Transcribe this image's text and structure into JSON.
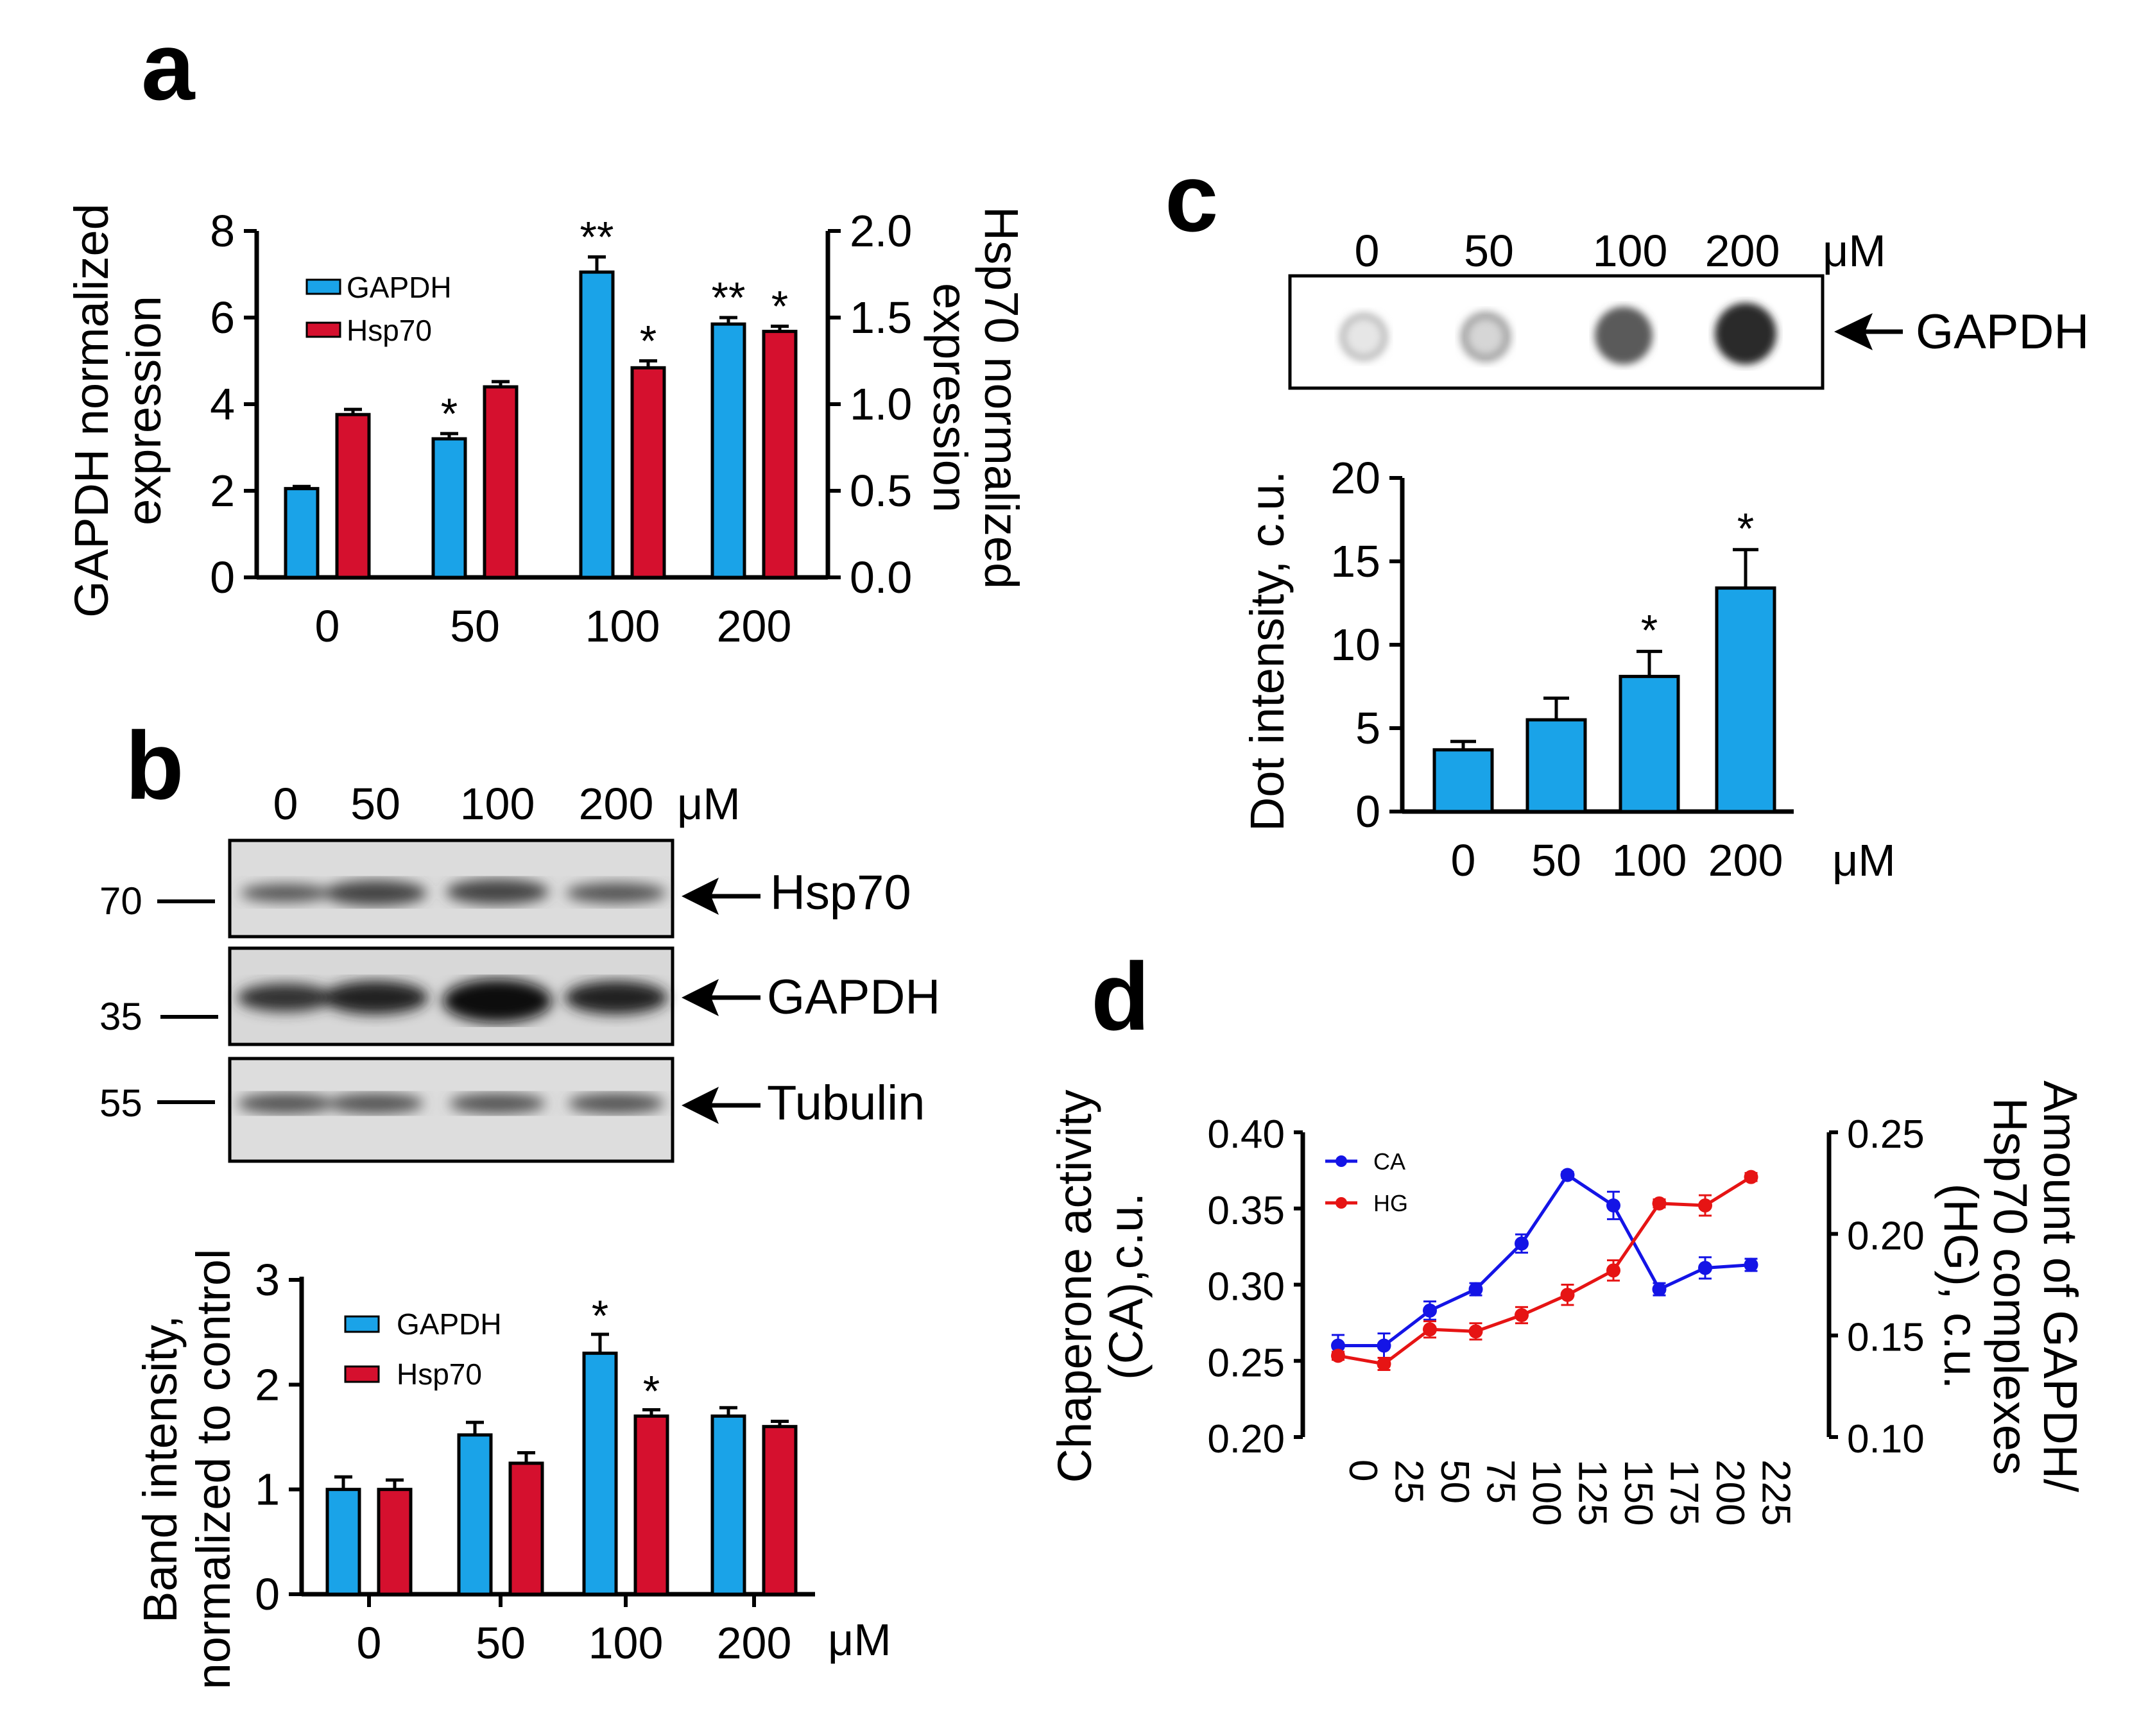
{
  "colors": {
    "gapdh": "#1aa3e8",
    "hsp70": "#d5102e",
    "ca": "#1414e6",
    "hg": "#e61414",
    "blot_bg": "#d9d9d9"
  },
  "panel_a": {
    "letter": "a",
    "ylabel_left": [
      "GAPDH normalized",
      "expression"
    ],
    "ylabel_right": [
      "Hsp70 normalized",
      "expression"
    ],
    "legend": [
      "GAPDH",
      "Hsp70"
    ],
    "chart_data": {
      "type": "bar",
      "categories": [
        "0",
        "50",
        "100",
        "200"
      ],
      "series": [
        {
          "name": "GAPDH",
          "axis": "left",
          "values": [
            2.05,
            3.2,
            7.05,
            5.85
          ],
          "errors": [
            0.05,
            0.12,
            0.35,
            0.15
          ],
          "stars": [
            "",
            "*",
            "**",
            "**"
          ]
        },
        {
          "name": "Hsp70",
          "axis": "right",
          "values": [
            0.94,
            1.1,
            1.21,
            1.42
          ],
          "errors": [
            0.03,
            0.03,
            0.04,
            0.03
          ],
          "stars": [
            "",
            "",
            "*",
            "*"
          ]
        }
      ],
      "ylim_left": [
        0,
        8
      ],
      "yticks_left": [
        "0",
        "2",
        "4",
        "6",
        "8"
      ],
      "ylim_right": [
        0,
        2
      ],
      "yticks_right": [
        "0.0",
        "0.5",
        "1.0",
        "1.5",
        "2.0"
      ]
    }
  },
  "panel_b": {
    "letter": "b",
    "blot_header": [
      "0",
      "50",
      "100",
      "200",
      "μM"
    ],
    "blots": [
      {
        "label": "Hsp70",
        "marker": "70"
      },
      {
        "label": "GAPDH",
        "marker": "35"
      },
      {
        "label": "Tubulin",
        "marker": "55"
      }
    ],
    "ylabel": [
      "Band intensity,",
      "normalized to control"
    ],
    "unit": "μM",
    "legend": [
      "GAPDH",
      "Hsp70"
    ],
    "chart_data": {
      "type": "bar",
      "categories": [
        "0",
        "50",
        "100",
        "200"
      ],
      "series": [
        {
          "name": "GAPDH",
          "values": [
            1.0,
            1.52,
            2.3,
            1.7
          ],
          "errors": [
            0.12,
            0.12,
            0.18,
            0.08
          ],
          "stars": [
            "",
            "",
            "*",
            ""
          ]
        },
        {
          "name": "Hsp70",
          "values": [
            1.0,
            1.25,
            1.7,
            1.6
          ],
          "errors": [
            0.09,
            0.1,
            0.06,
            0.05
          ],
          "stars": [
            "",
            "",
            "*",
            ""
          ]
        }
      ],
      "ylim": [
        0,
        3
      ],
      "yticks": [
        "0",
        "1",
        "2",
        "3"
      ]
    }
  },
  "panel_c": {
    "letter": "c",
    "blot_header": [
      "0",
      "50",
      "100",
      "200",
      "μM"
    ],
    "blot_label": "GAPDH",
    "ylabel": "Dot intensity, c.u.",
    "unit": "μM",
    "chart_data": {
      "type": "bar",
      "categories": [
        "0",
        "50",
        "100",
        "200"
      ],
      "series": [
        {
          "name": "GAPDH",
          "values": [
            3.7,
            5.5,
            8.1,
            13.4
          ],
          "errors": [
            0.5,
            1.3,
            1.5,
            2.3
          ],
          "stars": [
            "",
            "",
            "*",
            "*"
          ]
        }
      ],
      "ylim": [
        0,
        20
      ],
      "yticks": [
        "0",
        "5",
        "10",
        "15",
        "20"
      ]
    }
  },
  "panel_d": {
    "letter": "d",
    "ylabel_left": [
      "Chaperone activity",
      "(CA),c.u."
    ],
    "ylabel_right": [
      "Amount of GAPDH/",
      "Hsp70 complexes",
      "(HG), c.u."
    ],
    "legend": [
      "CA",
      "HG"
    ],
    "chart_data": {
      "type": "line",
      "x": [
        "0",
        "25",
        "50",
        "75",
        "100",
        "125",
        "150",
        "175",
        "200",
        "225"
      ],
      "series": [
        {
          "name": "CA",
          "axis": "left",
          "values": [
            0.26,
            0.26,
            0.283,
            0.297,
            0.327,
            0.372,
            0.352,
            0.297,
            0.311,
            0.313
          ],
          "errors": [
            0.007,
            0.008,
            0.006,
            0.004,
            0.006,
            0.002,
            0.009,
            0.004,
            0.007,
            0.004
          ]
        },
        {
          "name": "HG",
          "axis": "right",
          "values": [
            0.14,
            0.136,
            0.153,
            0.152,
            0.16,
            0.17,
            0.182,
            0.215,
            0.214,
            0.228
          ],
          "errors": [
            0.002,
            0.003,
            0.004,
            0.004,
            0.004,
            0.005,
            0.005,
            0.002,
            0.005,
            0.002
          ]
        }
      ],
      "ylim_left": [
        0.2,
        0.4
      ],
      "yticks_left": [
        "0.20",
        "0.25",
        "0.30",
        "0.35",
        "0.40"
      ],
      "ylim_right": [
        0.1,
        0.25
      ],
      "yticks_right": [
        "0.10",
        "0.15",
        "0.20",
        "0.25"
      ]
    }
  }
}
